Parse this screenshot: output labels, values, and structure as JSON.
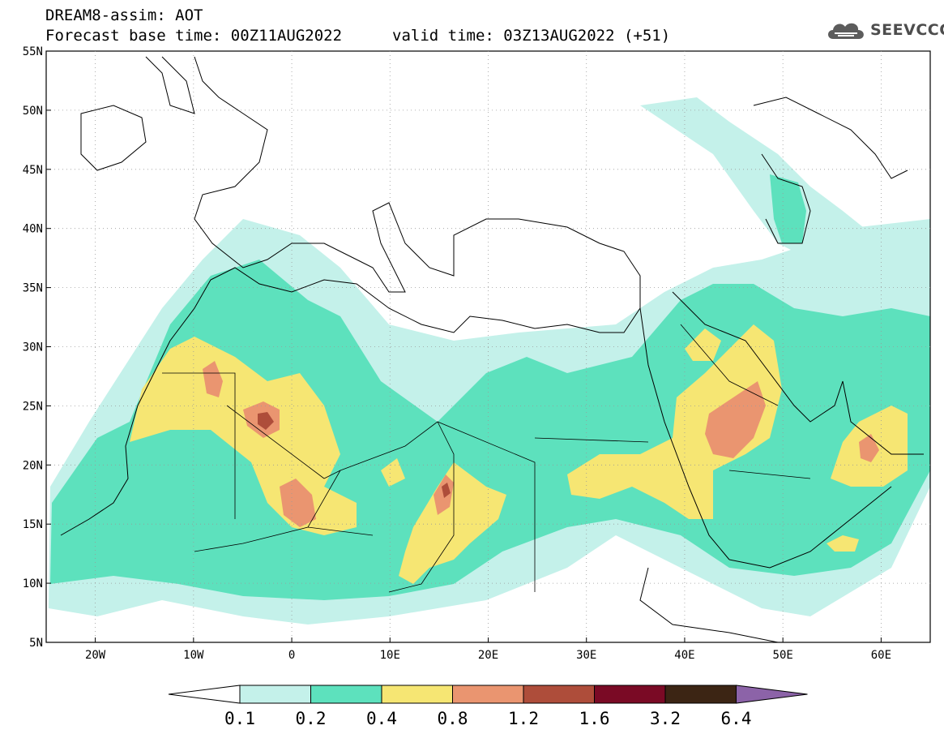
{
  "title": {
    "line1": "DREAM8-assim: AOT",
    "line2": "Forecast base time: 00Z11AUG2022",
    "valid": "valid time: 03Z13AUG2022 (+51)"
  },
  "logo": {
    "text": "SEEVCCC",
    "icon": "cloud-icon"
  },
  "map": {
    "lat_labels": [
      "55N",
      "50N",
      "45N",
      "40N",
      "35N",
      "30N",
      "25N",
      "20N",
      "15N",
      "10N",
      "5N"
    ],
    "lon_labels": [
      "20W",
      "10W",
      "0",
      "10E",
      "20E",
      "30E",
      "40E",
      "50E",
      "60E"
    ],
    "lon_range": [
      -25,
      65
    ],
    "lat_range": [
      5,
      55
    ]
  },
  "legend": {
    "levels": [
      "0.1",
      "0.2",
      "0.4",
      "0.8",
      "1.2",
      "1.6",
      "3.2",
      "6.4"
    ],
    "colors": [
      "#ffffff",
      "#c4f1ea",
      "#5de1bd",
      "#f6e673",
      "#ea9570",
      "#ae4d3a",
      "#7a0a25",
      "#3c2514",
      "#8c63a8"
    ]
  }
}
